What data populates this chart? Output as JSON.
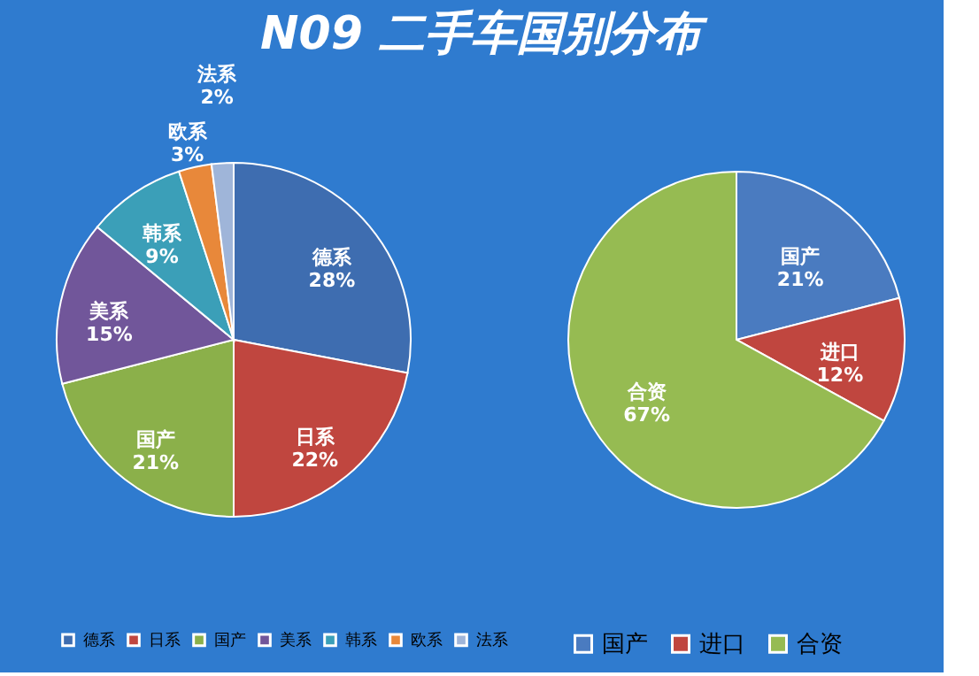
{
  "chart_data": [
    {
      "type": "pie",
      "title": "N09 二手车国别分布",
      "categories": [
        "德系",
        "日系",
        "国产",
        "美系",
        "韩系",
        "欧系",
        "法系"
      ],
      "values": [
        28,
        22,
        21,
        15,
        9,
        3,
        2
      ],
      "value_labels": [
        "28%",
        "22%",
        "21%",
        "15%",
        "9%",
        "3%",
        "2%"
      ],
      "colors": [
        "#3e6db0",
        "#c0463f",
        "#8bb04a",
        "#71569a",
        "#3b9fb8",
        "#e8883a",
        "#9fb5d9"
      ],
      "legend": "bottom"
    },
    {
      "type": "pie",
      "categories": [
        "国产",
        "进口",
        "合资"
      ],
      "values": [
        21,
        12,
        67
      ],
      "value_labels": [
        "21%",
        "12%",
        "67%"
      ],
      "colors": [
        "#4a7bc0",
        "#c0463f",
        "#96bb52"
      ],
      "legend": "bottom"
    }
  ]
}
